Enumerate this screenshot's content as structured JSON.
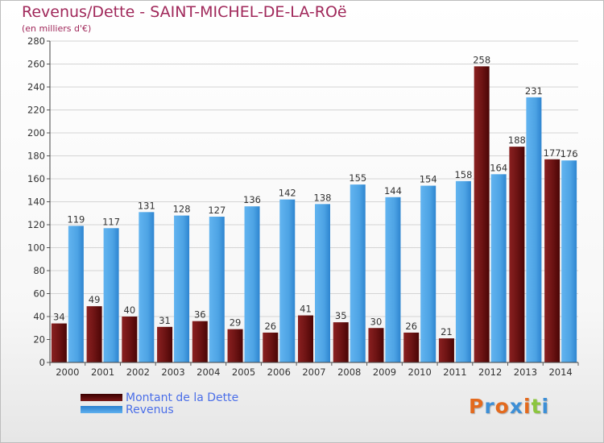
{
  "header": {
    "title": "Revenus/Dette - SAINT-MICHEL-DE-LA-ROë",
    "subtitle": "(en milliers d'€)"
  },
  "legend": {
    "debt_label": "Montant de la Dette",
    "revenue_label": "Revenus"
  },
  "logo": {
    "text": "Proxiti",
    "colors": [
      "#e36a1e",
      "#3d8fd6",
      "#e36a1e",
      "#3d8fd6",
      "#e36a1e",
      "#8cc63f",
      "#3d8fd6"
    ]
  },
  "colors": {
    "debt": "#7a1818",
    "debt_dark": "#3a0000",
    "revenue": "#5fb0ee",
    "revenue_dark": "#2a7fcf",
    "title": "#a0285a",
    "legend_text": "#4a6ee8"
  },
  "chart_data": {
    "type": "bar",
    "title": "Revenus/Dette - SAINT-MICHEL-DE-LA-ROë",
    "subtitle": "(en milliers d'€)",
    "xlabel": "",
    "ylabel": "",
    "ylim": [
      0,
      280
    ],
    "yticks": [
      0,
      20,
      40,
      60,
      80,
      100,
      120,
      140,
      160,
      180,
      200,
      220,
      240,
      260,
      280
    ],
    "grid": true,
    "legend_position": "bottom-left",
    "categories": [
      "2000",
      "2001",
      "2002",
      "2003",
      "2004",
      "2005",
      "2006",
      "2007",
      "2008",
      "2009",
      "2010",
      "2011",
      "2012",
      "2013",
      "2014"
    ],
    "series": [
      {
        "name": "Montant de la Dette",
        "values": [
          34,
          49,
          40,
          31,
          36,
          29,
          26,
          41,
          35,
          30,
          26,
          21,
          258,
          188,
          177
        ]
      },
      {
        "name": "Revenus",
        "values": [
          119,
          117,
          131,
          128,
          127,
          136,
          142,
          138,
          155,
          144,
          154,
          158,
          164,
          231,
          176
        ]
      }
    ]
  }
}
